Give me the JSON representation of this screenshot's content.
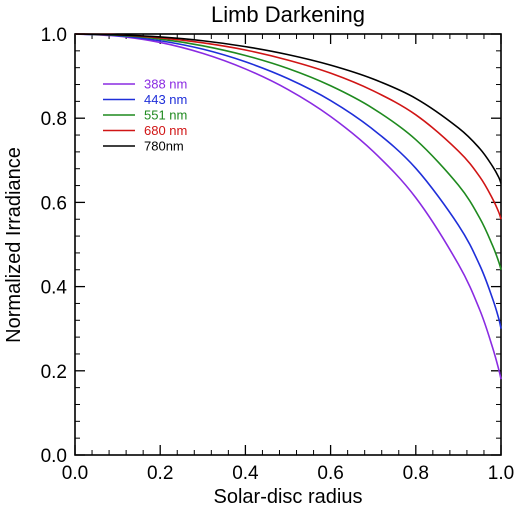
{
  "chart_data": {
    "type": "line",
    "title": "Limb Darkening",
    "xlabel": "Solar-disc radius",
    "ylabel": "Normalized Irradiance",
    "xlim": [
      0.0,
      1.0
    ],
    "ylim": [
      0.0,
      1.0
    ],
    "xticks": [
      "0.0",
      "0.2",
      "0.4",
      "0.6",
      "0.8",
      "1.0"
    ],
    "yticks": [
      "0.0",
      "0.2",
      "0.4",
      "0.6",
      "0.8",
      "1.0"
    ],
    "grid": false,
    "legend_position": "left",
    "x": [
      0.0,
      0.1,
      0.2,
      0.3,
      0.4,
      0.5,
      0.6,
      0.7,
      0.8,
      0.9,
      0.95,
      0.98,
      0.995,
      1.0
    ],
    "series": [
      {
        "name": "388 nm",
        "color": "#8A2BE2",
        "values": [
          1.0,
          0.995,
          0.98,
          0.954,
          0.917,
          0.868,
          0.804,
          0.721,
          0.611,
          0.453,
          0.345,
          0.256,
          0.202,
          0.18
        ]
      },
      {
        "name": "443 nm",
        "color": "#1f2fd9",
        "values": [
          1.0,
          0.996,
          0.984,
          0.964,
          0.934,
          0.894,
          0.842,
          0.773,
          0.681,
          0.546,
          0.451,
          0.372,
          0.323,
          0.3
        ]
      },
      {
        "name": "551 nm",
        "color": "#1f8a1f",
        "values": [
          1.0,
          0.997,
          0.988,
          0.972,
          0.949,
          0.918,
          0.877,
          0.823,
          0.749,
          0.641,
          0.563,
          0.498,
          0.458,
          0.44
        ]
      },
      {
        "name": "680 nm",
        "color": "#d01515",
        "values": [
          1.0,
          0.998,
          0.991,
          0.979,
          0.962,
          0.938,
          0.907,
          0.865,
          0.808,
          0.722,
          0.661,
          0.609,
          0.576,
          0.56
        ]
      },
      {
        "name": "780nm",
        "color": "#000000",
        "values": [
          1.0,
          0.998,
          0.993,
          0.984,
          0.97,
          0.951,
          0.926,
          0.893,
          0.847,
          0.777,
          0.728,
          0.686,
          0.659,
          0.645
        ]
      }
    ]
  }
}
